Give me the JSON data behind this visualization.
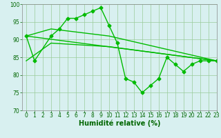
{
  "series": [
    {
      "x": [
        0,
        1,
        3,
        4,
        5,
        6,
        7,
        8,
        9,
        10,
        11,
        12,
        13,
        14,
        15,
        16,
        17,
        18,
        19,
        20,
        21,
        22,
        23
      ],
      "y": [
        91,
        84,
        91,
        93,
        96,
        96,
        97,
        98,
        99,
        94,
        89,
        79,
        78,
        75,
        77,
        79,
        85,
        83,
        81,
        83,
        84,
        84,
        84
      ],
      "marker": "D",
      "markersize": 2.5,
      "linewidth": 1.0
    },
    {
      "x": [
        0,
        3,
        10,
        23
      ],
      "y": [
        91,
        93,
        91,
        84
      ],
      "marker": null,
      "linewidth": 1.0
    },
    {
      "x": [
        0,
        23
      ],
      "y": [
        91,
        84
      ],
      "marker": null,
      "linewidth": 1.0
    },
    {
      "x": [
        0,
        3,
        10,
        23
      ],
      "y": [
        84,
        89,
        88,
        84
      ],
      "marker": null,
      "linewidth": 1.0
    }
  ],
  "line_color": "#00bb00",
  "background_color": "#d8f0f0",
  "grid_color": "#99cc99",
  "xlabel": "Humidité relative (%)",
  "xlabel_color": "#006600",
  "xlabel_fontsize": 7,
  "tick_color": "#006600",
  "tick_fontsize": 5.5,
  "ylim": [
    70,
    100
  ],
  "xlim": [
    -0.5,
    23
  ],
  "yticks": [
    70,
    75,
    80,
    85,
    90,
    95,
    100
  ],
  "xticks": [
    0,
    1,
    2,
    3,
    4,
    5,
    6,
    7,
    8,
    9,
    10,
    11,
    12,
    13,
    14,
    15,
    16,
    17,
    18,
    19,
    20,
    21,
    22,
    23
  ]
}
